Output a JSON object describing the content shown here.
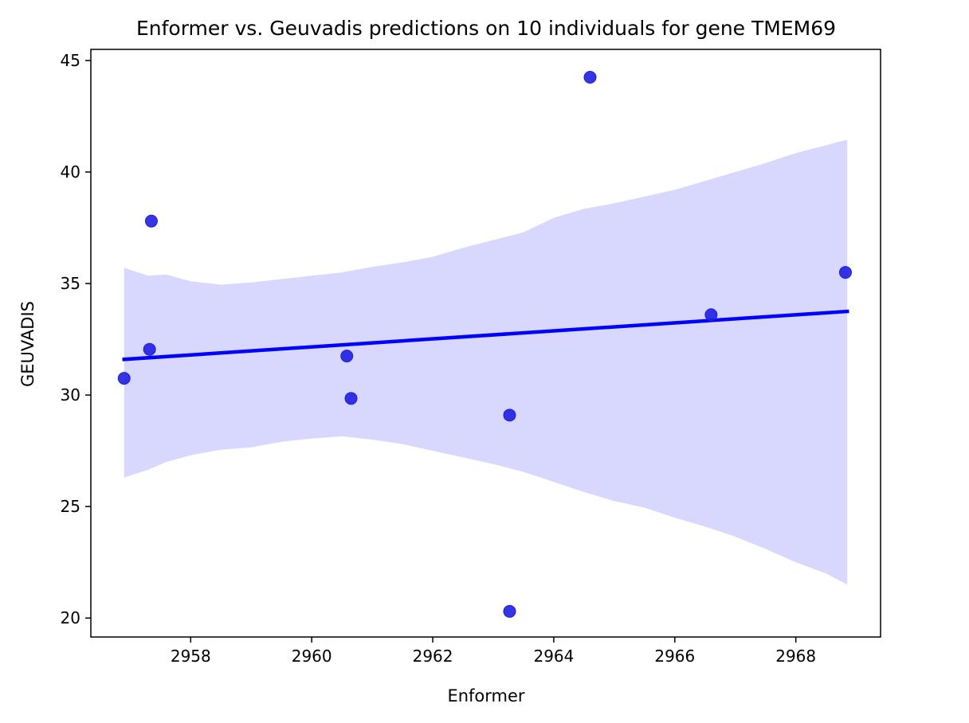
{
  "chart_data": {
    "type": "scatter",
    "title": "Enformer vs. Geuvadis predictions on 10 individuals for gene TMEM69",
    "xlabel": "Enformer",
    "ylabel": "GEUVADIS",
    "xlim": [
      2956.35,
      2969.4
    ],
    "ylim": [
      19.15,
      45.5
    ],
    "xticks": [
      2958,
      2960,
      2962,
      2964,
      2966,
      2968
    ],
    "yticks": [
      20,
      25,
      30,
      35,
      40,
      45
    ],
    "grid": false,
    "legend": "none",
    "colors": {
      "points": "#1f1fe0",
      "line": "#0000ff",
      "band": "#d8d8ff"
    },
    "points": [
      {
        "x": 2956.9,
        "y": 30.75
      },
      {
        "x": 2957.35,
        "y": 37.8
      },
      {
        "x": 2957.32,
        "y": 32.05
      },
      {
        "x": 2960.58,
        "y": 31.75
      },
      {
        "x": 2960.65,
        "y": 29.85
      },
      {
        "x": 2963.27,
        "y": 29.1
      },
      {
        "x": 2963.27,
        "y": 20.3
      },
      {
        "x": 2964.6,
        "y": 44.25
      },
      {
        "x": 2966.6,
        "y": 33.6
      },
      {
        "x": 2968.82,
        "y": 35.5
      }
    ],
    "regression_line": {
      "x": [
        2956.9,
        2968.85
      ],
      "y": [
        31.6,
        33.75
      ]
    },
    "confidence_band": {
      "x": [
        2956.9,
        2957.3,
        2957.6,
        2958.0,
        2958.5,
        2959.0,
        2959.5,
        2960.0,
        2960.5,
        2961.0,
        2961.5,
        2962.0,
        2962.5,
        2963.0,
        2963.5,
        2964.0,
        2964.5,
        2965.0,
        2965.5,
        2966.0,
        2966.5,
        2967.0,
        2967.5,
        2968.0,
        2968.5,
        2968.85
      ],
      "upper": [
        35.7,
        35.35,
        35.4,
        35.1,
        34.95,
        35.05,
        35.2,
        35.35,
        35.5,
        35.75,
        35.95,
        36.2,
        36.6,
        36.95,
        37.3,
        37.95,
        38.35,
        38.6,
        38.9,
        39.2,
        39.6,
        40.0,
        40.4,
        40.85,
        41.2,
        41.45
      ],
      "lower": [
        26.3,
        26.65,
        27.0,
        27.3,
        27.55,
        27.65,
        27.9,
        28.05,
        28.15,
        28.0,
        27.8,
        27.5,
        27.2,
        26.9,
        26.55,
        26.1,
        25.65,
        25.25,
        24.95,
        24.5,
        24.1,
        23.65,
        23.1,
        22.5,
        22.0,
        21.5
      ]
    }
  }
}
